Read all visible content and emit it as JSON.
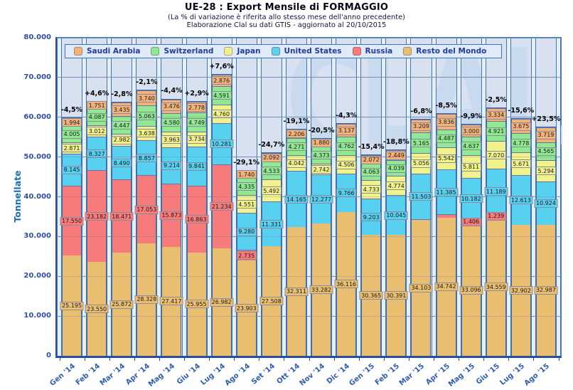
{
  "header": {
    "title": "UE-28 : Export Mensile di FORMAGGIO",
    "subtitle": "(La % di variazione è riferita allo stesso mese dell'anno precedente)",
    "source": "Elaborazione Clal su dati GTIS - aggiornato al 20/10/2015"
  },
  "watermark": {
    "text": "CLAL"
  },
  "chart_data": {
    "type": "bar",
    "stacked": true,
    "title": "UE-28 : Export Mensile di FORMAGGIO",
    "xlabel": "",
    "ylabel": "Tonnellate",
    "ylim": [
      0,
      80000
    ],
    "ytick_step": 10000,
    "ytick_labels": [
      "0",
      "10.000",
      "20.000",
      "30.000",
      "40.000",
      "50.000",
      "60.000",
      "70.000",
      "80.000"
    ],
    "grid": true,
    "legend_position": "top-left-inside",
    "categories": [
      "Gen '14",
      "Feb '14",
      "Mar '14",
      "Apr '14",
      "Mag '14",
      "Giu '14",
      "Lug '14",
      "Ago '14",
      "Set '14",
      "Ott '14",
      "Nov '14",
      "Dic '14",
      "Gen '15",
      "Feb '15",
      "Mar '15",
      "Apr '15",
      "Mag '15",
      "Giu '15",
      "Lug '15",
      "Ago '15"
    ],
    "pct_change": [
      "-4,5%",
      "+4,6%",
      "-2,8%",
      "-2,1%",
      "-4,4%",
      "+2,9%",
      "+7,6%",
      "-29,1%",
      "-24,7%",
      "-19,1%",
      "-20,5%",
      "-4,3%",
      "-15,4%",
      "-18,8%",
      "-6,8%",
      "-8,5%",
      "-9,9%",
      "-2,5%",
      "-15,6%",
      "+23,5%"
    ],
    "legend_order": [
      "Saudi Arabia",
      "Switzerland",
      "Japan",
      "United States",
      "Russia",
      "Resto del Mondo"
    ],
    "series": [
      {
        "name": "Resto del Mondo",
        "color": "#E9BE70",
        "values": [
          25195,
          23550,
          25872,
          28328,
          27417,
          25955,
          26982,
          23903,
          27508,
          32311,
          33282,
          36116,
          30365,
          30391,
          34103,
          34742,
          33096,
          34559,
          32902,
          32987
        ],
        "labels": [
          "25.195",
          "23.550",
          "25.872",
          "28.328",
          "27.417",
          "25.955",
          "26.982",
          "23.903",
          "27.508",
          "32.311",
          "33.282",
          "36.116",
          "30.365",
          "30.391",
          "34.103",
          "34.742",
          "33.096",
          "34.559",
          "32.902",
          "32.987"
        ]
      },
      {
        "name": "Russia",
        "color": "#F77B7B",
        "values": [
          17550,
          23182,
          18471,
          17053,
          15873,
          16863,
          21234,
          2735,
          0,
          0,
          0,
          0,
          0,
          0,
          300,
          800,
          1406,
          1239,
          0,
          0
        ],
        "labels": [
          "17.550",
          "23.182",
          "18.471",
          "17.053",
          "15.873",
          "16.863",
          "21.234",
          "2.735",
          "",
          "",
          "",
          "",
          "",
          "",
          "",
          "",
          "1.406",
          "1.239",
          "",
          ""
        ]
      },
      {
        "name": "United States",
        "color": "#58D0F0",
        "values": [
          8145,
          8327,
          8490,
          8857,
          9214,
          9841,
          10281,
          9280,
          11331,
          14165,
          12277,
          9766,
          9203,
          10045,
          11503,
          11385,
          10182,
          11189,
          12613,
          10924
        ],
        "labels": [
          "8.145",
          "8.327",
          "8.490",
          "8.857",
          "9.214",
          "9.841",
          "10.281",
          "9.280",
          "11.331",
          "14.165",
          "12.277",
          "9.766",
          "9.203",
          "10.045",
          "11.503",
          "11.385",
          "10.182",
          "11.189",
          "12.613",
          "10.924"
        ]
      },
      {
        "name": "Japan",
        "color": "#F2F28C",
        "values": [
          2871,
          3012,
          2982,
          3638,
          3963,
          3734,
          4760,
          4551,
          5492,
          4042,
          2742,
          4506,
          4733,
          4774,
          5056,
          5542,
          5811,
          7070,
          5671,
          5294
        ],
        "labels": [
          "2.871",
          "3.012",
          "2.982",
          "3.638",
          "3.963",
          "3.734",
          "4.760",
          "4.551",
          "5.492",
          "4.042",
          "2.742",
          "4.506",
          "4.733",
          "4.774",
          "5.056",
          "5.542",
          "5.811",
          "7.070",
          "5.671",
          "5.294"
        ]
      },
      {
        "name": "Switzerland",
        "color": "#90E890",
        "values": [
          4005,
          4087,
          4447,
          5063,
          4580,
          4749,
          4591,
          4335,
          4533,
          4271,
          4373,
          4762,
          4063,
          4039,
          5165,
          4487,
          4637,
          4921,
          4778,
          4565
        ],
        "labels": [
          "4.005",
          "4.087",
          "4.447",
          "5.063",
          "4.580",
          "4.749",
          "4.591",
          "4.335",
          "4.533",
          "4.271",
          "4.373",
          "4.762",
          "4.063",
          "4.039",
          "5.165",
          "4.487",
          "4.637",
          "4.921",
          "4.778",
          "4.565"
        ]
      },
      {
        "name": "Saudi Arabia",
        "color": "#F2B279",
        "values": [
          1994,
          1751,
          3435,
          3740,
          3476,
          2778,
          2876,
          1740,
          2092,
          2206,
          1880,
          3137,
          2072,
          2449,
          3209,
          3836,
          3000,
          3334,
          3675,
          3719
        ],
        "labels": [
          "1.994",
          "1.751",
          "3.435",
          "3.740",
          "3.476",
          "2.778",
          "2.876",
          "1.740",
          "2.092",
          "2.206",
          "1.880",
          "3.137",
          "2.072",
          "2.449",
          "3.209",
          "3.836",
          "3.000",
          "3.334",
          "3.675",
          "3.719"
        ]
      }
    ]
  }
}
